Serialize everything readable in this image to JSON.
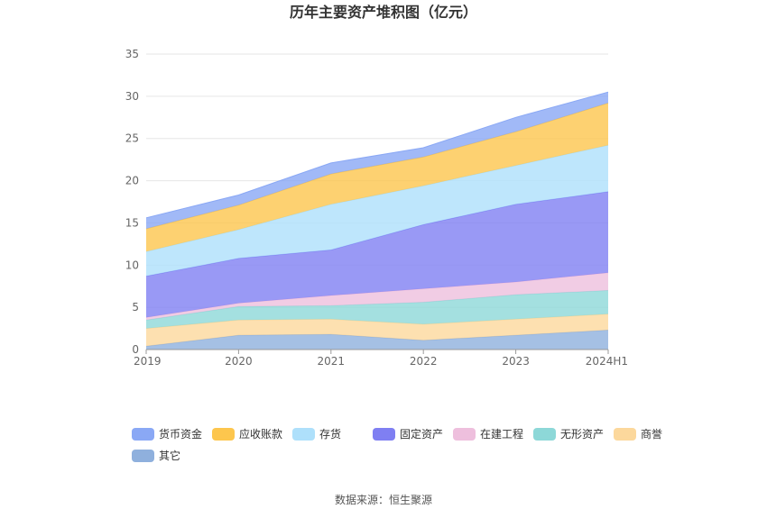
{
  "chart_data": {
    "type": "area",
    "stacked": true,
    "title": "历年主要资产堆积图（亿元）",
    "source": "数据来源：恒生聚源",
    "x": [
      "2019",
      "2020",
      "2021",
      "2022",
      "2023",
      "2024H1"
    ],
    "ylim": [
      0,
      35
    ],
    "yticks": [
      0,
      5,
      10,
      15,
      20,
      25,
      30,
      35
    ],
    "legend_position": "bottom",
    "series": [
      {
        "name": "其它",
        "color": "#8fb0dd",
        "values": [
          0.4,
          1.7,
          1.8,
          1.1,
          1.7,
          2.3
        ]
      },
      {
        "name": "商誉",
        "color": "#fcd89c",
        "values": [
          2.1,
          1.8,
          1.8,
          1.9,
          1.9,
          1.9
        ]
      },
      {
        "name": "无形资产",
        "color": "#8dd8d8",
        "values": [
          1.0,
          1.6,
          1.6,
          2.6,
          2.9,
          2.8
        ]
      },
      {
        "name": "在建工程",
        "color": "#eebfdd",
        "values": [
          0.3,
          0.4,
          1.2,
          1.6,
          1.5,
          2.1
        ]
      },
      {
        "name": "固定资产",
        "color": "#7f7ff2",
        "values": [
          4.9,
          5.3,
          5.4,
          7.6,
          9.2,
          9.6
        ]
      },
      {
        "name": "存货",
        "color": "#aee0fb",
        "values": [
          2.9,
          3.4,
          5.4,
          4.6,
          4.6,
          5.5
        ]
      },
      {
        "name": "应收账款",
        "color": "#fdc64d",
        "values": [
          2.7,
          2.9,
          3.6,
          3.4,
          4.0,
          5.0
        ]
      },
      {
        "name": "货币资金",
        "color": "#8aa8f5",
        "values": [
          1.3,
          1.2,
          1.3,
          1.1,
          1.7,
          1.3
        ]
      }
    ],
    "legend_order": [
      "货币资金",
      "应收账款",
      "存货",
      "固定资产",
      "在建工程",
      "无形资产",
      "商誉",
      "其它"
    ]
  }
}
